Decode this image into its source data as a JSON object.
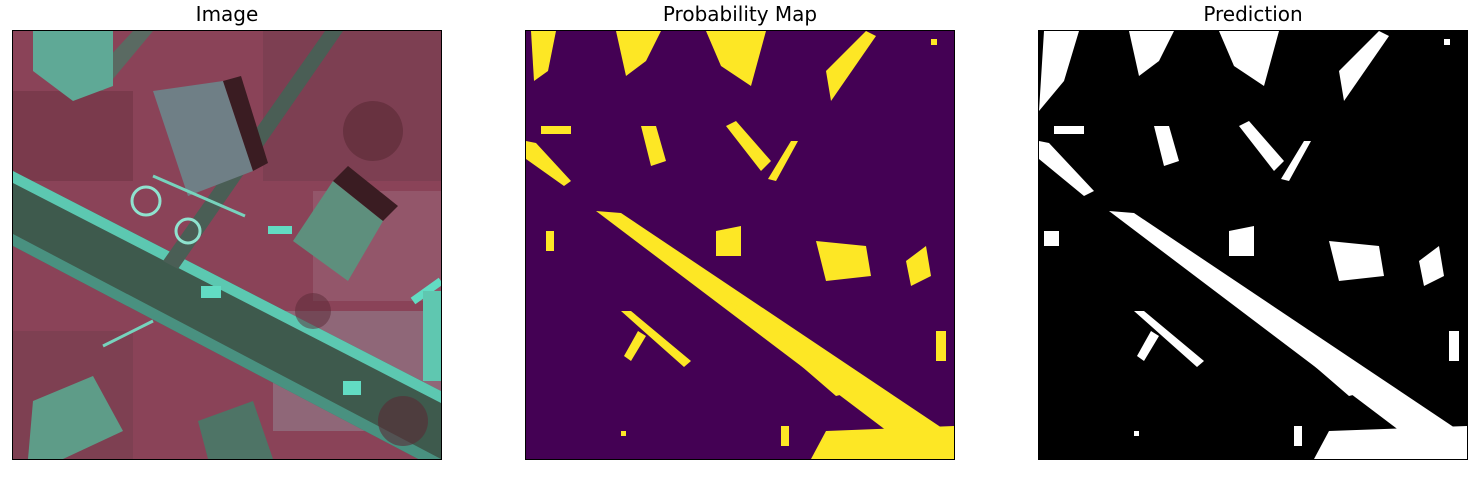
{
  "figure": {
    "panels": [
      {
        "title": "Image",
        "content": "false-color-aerial-image"
      },
      {
        "title": "Probability Map",
        "content": "probability-heatmap"
      },
      {
        "title": "Prediction",
        "content": "binary-mask"
      }
    ]
  },
  "colors": {
    "aerial_ground": "#8a4358",
    "aerial_grass": "#6e3848",
    "aerial_road": "#3e5a4d",
    "aerial_road_edge": "#62dcc3",
    "aerial_roof_gray": "#6f7f86",
    "aerial_roof_green": "#5e8f7d",
    "aerial_shadow": "#3a1c22",
    "prob_background": "#440154",
    "prob_foreground": "#fde725",
    "pred_background": "#000000",
    "pred_foreground": "#ffffff"
  }
}
